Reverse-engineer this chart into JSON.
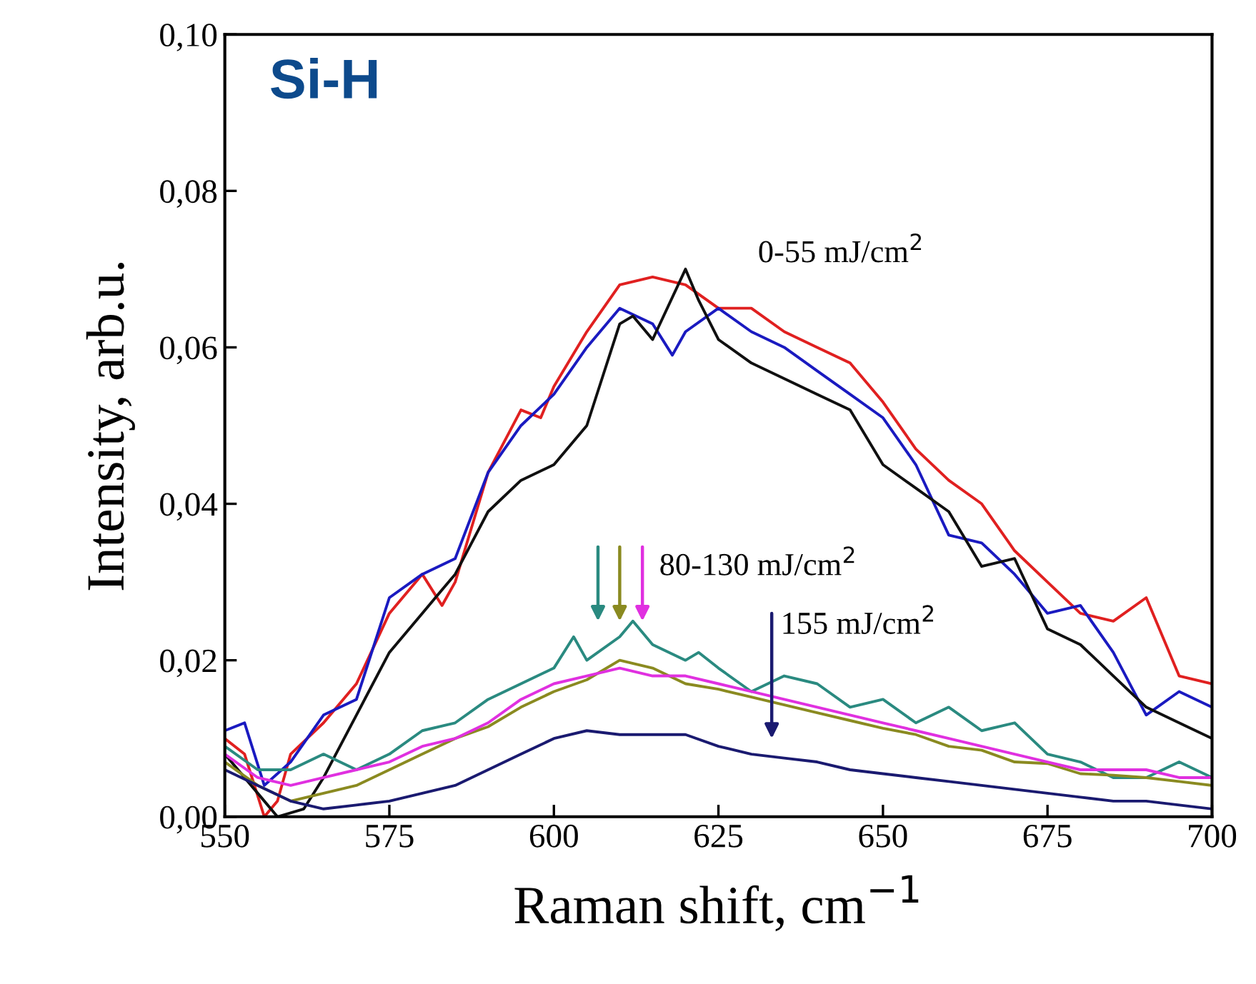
{
  "chart_data": {
    "type": "line",
    "title": "Si-H",
    "xlabel": "Raman shift, cm$^{−1}$",
    "ylabel": "Intensity, arb.u.",
    "xlim": [
      550,
      700
    ],
    "xticks": [
      550,
      575,
      600,
      625,
      650,
      675,
      700
    ],
    "ylim": [
      0,
      0.1
    ],
    "yticks": [
      {
        "value": 0,
        "label": "0,00"
      },
      {
        "value": 0.02,
        "label": "0,02"
      },
      {
        "value": 0.04,
        "label": "0,04"
      },
      {
        "value": 0.06,
        "label": "0,06"
      },
      {
        "value": 0.08,
        "label": "0,08"
      },
      {
        "value": 0.1,
        "label": "0,10"
      }
    ],
    "grid": false,
    "legend": false,
    "marker": "none",
    "line_style": "solid",
    "annotations": [
      "0-55 mJ/cm$^{2}$",
      "80-130 mJ/cm$^{2}$",
      "155 mJ/cm$^{2}$"
    ],
    "series": [
      {
        "color": "#e02020",
        "x": [
          550,
          553,
          556,
          558,
          560,
          565,
          570,
          575,
          580,
          583,
          585,
          590,
          595,
          598,
          600,
          605,
          610,
          615,
          620,
          625,
          630,
          635,
          640,
          645,
          650,
          655,
          660,
          665,
          670,
          675,
          680,
          685,
          690,
          695,
          700
        ],
        "values": [
          0.01,
          0.008,
          0.0,
          0.002,
          0.008,
          0.012,
          0.017,
          0.026,
          0.031,
          0.027,
          0.03,
          0.044,
          0.052,
          0.051,
          0.055,
          0.062,
          0.068,
          0.069,
          0.068,
          0.065,
          0.065,
          0.062,
          0.06,
          0.058,
          0.053,
          0.047,
          0.043,
          0.04,
          0.034,
          0.03,
          0.026,
          0.025,
          0.028,
          0.018,
          0.017
        ]
      },
      {
        "color": "#1a1ac0",
        "x": [
          550,
          553,
          556,
          560,
          565,
          570,
          575,
          580,
          585,
          590,
          595,
          600,
          605,
          610,
          615,
          618,
          620,
          625,
          630,
          635,
          640,
          645,
          650,
          655,
          660,
          665,
          670,
          675,
          680,
          685,
          690,
          695,
          700
        ],
        "values": [
          0.011,
          0.012,
          0.004,
          0.007,
          0.013,
          0.015,
          0.028,
          0.031,
          0.033,
          0.044,
          0.05,
          0.054,
          0.06,
          0.065,
          0.063,
          0.059,
          0.062,
          0.065,
          0.062,
          0.06,
          0.057,
          0.054,
          0.051,
          0.045,
          0.036,
          0.035,
          0.031,
          0.026,
          0.027,
          0.021,
          0.013,
          0.016,
          0.014
        ]
      },
      {
        "color": "#101010",
        "x": [
          550,
          555,
          558,
          562,
          565,
          570,
          575,
          580,
          583,
          585,
          590,
          595,
          600,
          605,
          610,
          612,
          615,
          620,
          622,
          625,
          630,
          635,
          640,
          645,
          650,
          655,
          660,
          665,
          670,
          675,
          680,
          685,
          690,
          695,
          700
        ],
        "values": [
          0.008,
          0.003,
          0.0,
          0.001,
          0.005,
          0.013,
          0.021,
          0.026,
          0.029,
          0.031,
          0.039,
          0.043,
          0.045,
          0.05,
          0.063,
          0.064,
          0.061,
          0.07,
          0.066,
          0.061,
          0.058,
          0.056,
          0.054,
          0.052,
          0.045,
          0.042,
          0.039,
          0.032,
          0.033,
          0.024,
          0.022,
          0.018,
          0.014,
          0.012,
          0.01
        ]
      },
      {
        "color": "#2a8a80",
        "x": [
          550,
          555,
          560,
          565,
          570,
          575,
          580,
          585,
          590,
          595,
          600,
          603,
          605,
          610,
          612,
          615,
          620,
          622,
          625,
          630,
          635,
          640,
          645,
          650,
          655,
          660,
          665,
          670,
          675,
          680,
          685,
          690,
          695,
          700
        ],
        "values": [
          0.009,
          0.006,
          0.006,
          0.008,
          0.006,
          0.008,
          0.011,
          0.012,
          0.015,
          0.017,
          0.019,
          0.023,
          0.02,
          0.023,
          0.025,
          0.022,
          0.02,
          0.021,
          0.019,
          0.016,
          0.018,
          0.017,
          0.014,
          0.015,
          0.012,
          0.014,
          0.011,
          0.012,
          0.008,
          0.007,
          0.005,
          0.005,
          0.007,
          0.005
        ]
      },
      {
        "color": "#8a8a20",
        "x": [
          550,
          555,
          560,
          565,
          570,
          575,
          580,
          585,
          590,
          595,
          600,
          605,
          610,
          615,
          620,
          625,
          630,
          635,
          640,
          645,
          650,
          655,
          660,
          665,
          670,
          675,
          680,
          685,
          690,
          695,
          700
        ],
        "values": [
          0.007,
          0.004,
          0.002,
          0.003,
          0.004,
          0.006,
          0.008,
          0.01,
          0.0115,
          0.014,
          0.016,
          0.0175,
          0.02,
          0.019,
          0.017,
          0.0163,
          0.0153,
          0.0143,
          0.0133,
          0.0123,
          0.0113,
          0.0105,
          0.009,
          0.0085,
          0.007,
          0.0068,
          0.0055,
          0.0053,
          0.005,
          0.0045,
          0.004
        ]
      },
      {
        "color": "#e030e0",
        "x": [
          550,
          555,
          560,
          565,
          570,
          575,
          580,
          585,
          590,
          595,
          600,
          605,
          610,
          615,
          620,
          625,
          630,
          635,
          640,
          645,
          650,
          655,
          660,
          665,
          670,
          675,
          680,
          685,
          690,
          695,
          700
        ],
        "values": [
          0.008,
          0.005,
          0.004,
          0.005,
          0.006,
          0.007,
          0.009,
          0.01,
          0.012,
          0.015,
          0.017,
          0.018,
          0.019,
          0.018,
          0.018,
          0.017,
          0.016,
          0.015,
          0.014,
          0.013,
          0.012,
          0.011,
          0.01,
          0.009,
          0.008,
          0.007,
          0.006,
          0.006,
          0.006,
          0.005,
          0.005
        ]
      },
      {
        "color": "#1a1a70",
        "x": [
          550,
          555,
          560,
          565,
          570,
          575,
          580,
          585,
          590,
          595,
          600,
          605,
          610,
          615,
          620,
          625,
          630,
          635,
          640,
          645,
          650,
          655,
          660,
          665,
          670,
          675,
          680,
          685,
          690,
          695,
          700
        ],
        "values": [
          0.006,
          0.004,
          0.002,
          0.001,
          0.0015,
          0.002,
          0.003,
          0.004,
          0.006,
          0.008,
          0.01,
          0.011,
          0.0105,
          0.0105,
          0.0105,
          0.009,
          0.008,
          0.0075,
          0.007,
          0.006,
          0.0055,
          0.005,
          0.0045,
          0.004,
          0.0035,
          0.003,
          0.0025,
          0.002,
          0.002,
          0.0015,
          0.001
        ]
      }
    ]
  }
}
